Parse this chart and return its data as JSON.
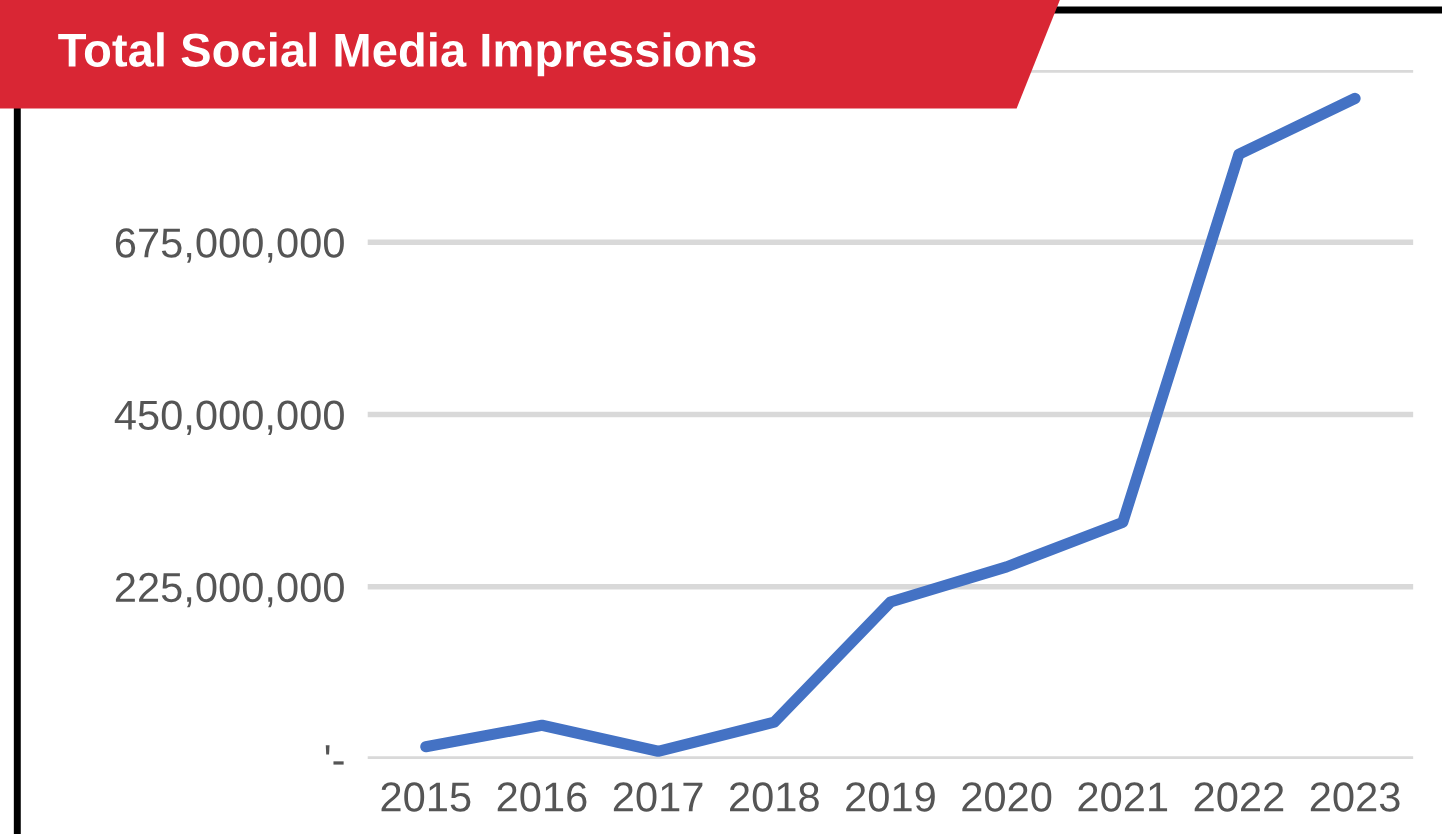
{
  "chart_data": {
    "type": "line",
    "title": "Total Social Media Impressions",
    "categories": [
      "2015",
      "2016",
      "2017",
      "2018",
      "2019",
      "2020",
      "2021",
      "2022",
      "2023"
    ],
    "series": [
      {
        "color": "#4472c4",
        "values": [
          16000000,
          44000000,
          10000000,
          48000000,
          205000000,
          251000000,
          309000000,
          790000000,
          863000000
        ]
      }
    ],
    "ylim": [
      0,
      900000000
    ],
    "yticks": [
      {
        "value": 0,
        "label": "'-"
      },
      {
        "value": 225000000,
        "label": "225,000,000"
      },
      {
        "value": 450000000,
        "label": "450,000,000"
      },
      {
        "value": 675000000,
        "label": "675,000,000"
      },
      {
        "value": 900000000,
        "label": null
      }
    ],
    "grid": "y",
    "marker": "none",
    "line_style": "solid",
    "legend": false
  }
}
